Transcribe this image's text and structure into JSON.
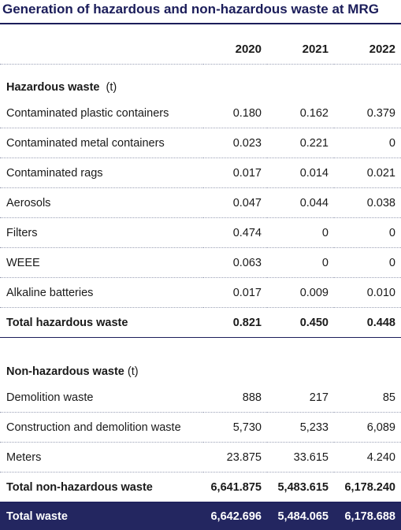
{
  "title": "Generation of hazardous and non-hazardous waste at MRG",
  "years": [
    "2020",
    "2021",
    "2022"
  ],
  "hazardous": {
    "heading": "Hazardous waste",
    "unit": "(t)",
    "rows": [
      {
        "label": "Contaminated plastic containers",
        "v2020": "0.180",
        "v2021": "0.162",
        "v2022": "0.379"
      },
      {
        "label": "Contaminated metal containers",
        "v2020": "0.023",
        "v2021": "0.221",
        "v2022": "0"
      },
      {
        "label": "Contaminated rags",
        "v2020": "0.017",
        "v2021": "0.014",
        "v2022": "0.021"
      },
      {
        "label": "Aerosols",
        "v2020": "0.047",
        "v2021": "0.044",
        "v2022": "0.038"
      },
      {
        "label": "Filters",
        "v2020": "0.474",
        "v2021": "0",
        "v2022": "0"
      },
      {
        "label": "WEEE",
        "v2020": "0.063",
        "v2021": "0",
        "v2022": "0"
      },
      {
        "label": "Alkaline batteries",
        "v2020": "0.017",
        "v2021": "0.009",
        "v2022": "0.010"
      }
    ],
    "total": {
      "label": "Total hazardous waste",
      "v2020": "0.821",
      "v2021": "0.450",
      "v2022": "0.448"
    }
  },
  "nonhazardous": {
    "heading": "Non-hazardous waste",
    "unit": "(t)",
    "rows": [
      {
        "label": "Demolition waste",
        "v2020": "888",
        "v2021": "217",
        "v2022": "85"
      },
      {
        "label": "Construction and demolition waste",
        "v2020": "5,730",
        "v2021": "5,233",
        "v2022": "6,089"
      },
      {
        "label": "Meters",
        "v2020": "23.875",
        "v2021": "33.615",
        "v2022": "4.240"
      }
    ],
    "total": {
      "label": "Total non-hazardous waste",
      "v2020": "6,641.875",
      "v2021": "5,483.615",
      "v2022": "6,178.240"
    }
  },
  "grand_total": {
    "label": "Total waste",
    "v2020": "6,642.696",
    "v2021": "5,484.065",
    "v2022": "6,178.688"
  }
}
